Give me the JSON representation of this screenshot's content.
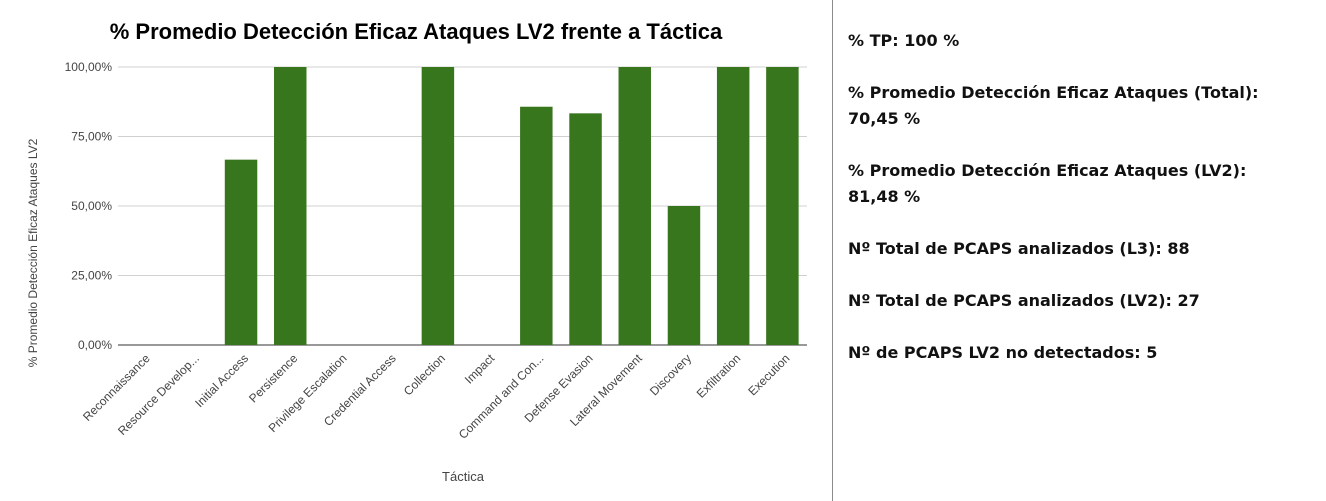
{
  "chart_data": {
    "type": "bar",
    "title": "% Promedio Detección Eficaz Ataques LV2 frente a Táctica",
    "xlabel": "Táctica",
    "ylabel": "% Promedio Detección Eficaz Ataques LV2",
    "categories": [
      "Reconnaissance",
      "Resource Develop...",
      "Initial Access",
      "Persistence",
      "Privilege Escalation",
      "Credential Access",
      "Collection",
      "Impact",
      "Command and Con...",
      "Defense Evasion",
      "Lateral Movement",
      "Discovery",
      "Exfiltration",
      "Execution"
    ],
    "values": [
      0,
      0,
      66.67,
      100,
      0,
      0,
      100,
      0,
      85.71,
      83.33,
      100,
      50,
      100,
      100
    ],
    "ylim": [
      0,
      100
    ],
    "y_ticks": [
      "0,00%",
      "25,00%",
      "50,00%",
      "75,00%",
      "100,00%"
    ],
    "bar_color": "#38761d",
    "grid": true,
    "legend": "none"
  },
  "stats": [
    {
      "label": "% TP:",
      "value": "100 %"
    },
    {
      "label": "% Promedio Detección Eficaz Ataques (Total):",
      "value": "70,45 %"
    },
    {
      "label": "% Promedio Detección Eficaz Ataques (LV2):",
      "value": "81,48 %"
    },
    {
      "label": "Nº Total de PCAPS analizados (L3):",
      "value": "88"
    },
    {
      "label": "Nº Total de PCAPS analizados (LV2):",
      "value": "27"
    },
    {
      "label": "Nº de PCAPS LV2 no detectados:",
      "value": "5"
    }
  ]
}
